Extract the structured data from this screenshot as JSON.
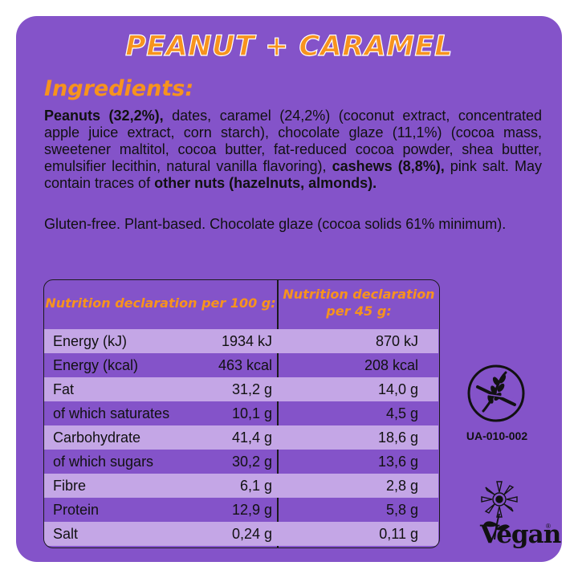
{
  "title": "PEANUT + CARAMEL",
  "ingredients": {
    "heading": "Ingredients:",
    "parts": [
      "Peanuts (32,2%),",
      " dates, caramel (24,2%) (coconut extract, concentrated apple juice extract, corn starch), chocolate glaze (11,1%) (cocoa mass, sweetener maltitol, cocoa butter, fat-reduced cocoa powder, shea butter, emulsifier lecithin, natural vanilla flavoring), ",
      "cashews (8,8%),",
      " pink salt. May contain traces of ",
      "other nuts (hazelnuts, almonds)."
    ],
    "extra": "Gluten-free. Plant-based. Chocolate glaze (cocoa solids 61% minimum)."
  },
  "nutrition": {
    "header_100g": "Nutrition declaration per 100 g:",
    "header_45g": "Nutrition declaration per 45 g:",
    "rows": [
      {
        "label": "Energy (kJ)",
        "per100": "1934 kJ",
        "per45": "870 kJ"
      },
      {
        "label": "Energy (kcal)",
        "per100": "463 kcal",
        "per45": "208 kcal"
      },
      {
        "label": "Fat",
        "per100": "31,2 g",
        "per45": "14,0 g"
      },
      {
        "label": "of which saturates",
        "per100": "10,1 g",
        "per45": "4,5 g"
      },
      {
        "label": "Carbohydrate",
        "per100": "41,4 g",
        "per45": "18,6 g"
      },
      {
        "label": "of which sugars",
        "per100": "30,2 g",
        "per45": "13,6 g"
      },
      {
        "label": "Fibre",
        "per100": "6,1 g",
        "per45": "2,8 g"
      },
      {
        "label": "Protein",
        "per100": "12,9 g",
        "per45": "5,8 g"
      },
      {
        "label": "Salt",
        "per100": "0,24 g",
        "per45": "0,11 g"
      }
    ]
  },
  "badges": {
    "gluten_free_icon": "crossed-grain-icon",
    "gluten_free_code": "UA-010-002",
    "vegan_icon": "vegan-sunflower-icon",
    "vegan_word": "Vegan",
    "vegan_reg": "®"
  },
  "colors": {
    "background": "#8453c9",
    "accent": "#f7931e",
    "row_highlight": "#c4a6e6"
  }
}
